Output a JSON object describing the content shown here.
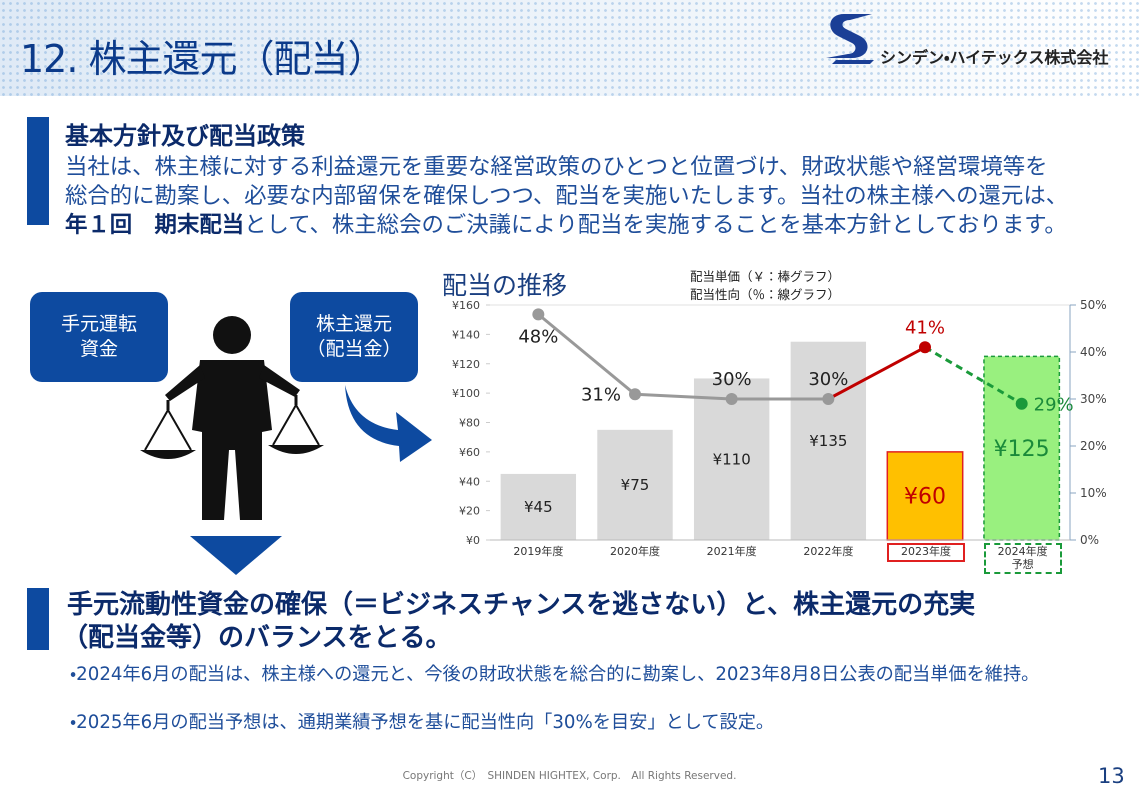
{
  "header": {
    "title": "12. 株主還元（配当）",
    "company": "シンデン・ハイテックス株式会社"
  },
  "policy": {
    "heading": "基本方針及び配当政策",
    "lines": [
      [
        "当社は、株主様に対する利益還元を重要な経営政策のひとつと位置づけ、財政状態や経営環境等を"
      ],
      [
        "総合的に勘案し、必要な内部留保を確保しつつ、配当を実施いたします。当社の株主様への還元は、"
      ],
      [
        "年１回　期末配当",
        "として、株主総会のご決議により配当を実施することを基本方針としております。"
      ]
    ]
  },
  "diagram": {
    "left_box": "手元運転\n資金",
    "right_box": "株主還元\n（配当金）"
  },
  "chart_data": {
    "type": "bar_line",
    "title": "配当の推移",
    "categories": [
      "2019年度",
      "2020年度",
      "2021年度",
      "2022年度",
      "2023年度",
      "2024年度\n予想"
    ],
    "series": [
      {
        "name": "配当単価（￥：棒グラフ）",
        "type": "bar",
        "values": [
          45,
          75,
          110,
          135,
          60,
          125
        ],
        "value_labels": [
          "¥45",
          "¥75",
          "¥110",
          "¥135",
          "¥60",
          "¥125"
        ],
        "colors": [
          "#d9d9d9",
          "#d9d9d9",
          "#d9d9d9",
          "#d9d9d9",
          "#ffc000",
          "#99f07f"
        ],
        "label_colors": [
          "#222222",
          "#222222",
          "#222222",
          "#222222",
          "#c00000",
          "#1a8a3a"
        ],
        "borders": [
          null,
          null,
          null,
          null,
          "solid",
          "dashed"
        ],
        "border_colors": [
          null,
          null,
          null,
          null,
          "#e02020",
          "#1a9a3a"
        ]
      },
      {
        "name": "配当性向（％：線グラフ）",
        "type": "line",
        "axis": "y2",
        "values": [
          48,
          31,
          30,
          30,
          41,
          29
        ],
        "value_labels": [
          "48%",
          "31%",
          "30%",
          "30%",
          "41%",
          "29%"
        ],
        "colors": [
          "#999999",
          "#999999",
          "#999999",
          "#999999",
          "#c00000",
          "#1a9a3a"
        ],
        "label_colors": [
          "#222222",
          "#222222",
          "#222222",
          "#222222",
          "#c00000",
          "#1a8a3a"
        ],
        "dash": [
          false,
          false,
          false,
          false,
          false,
          true
        ],
        "label_pos": [
          "below",
          "left",
          "above",
          "above",
          "above",
          "right"
        ]
      }
    ],
    "ylim": [
      0,
      160
    ],
    "yticks": [
      {
        "value": 0,
        "label": "¥0"
      },
      {
        "value": 20,
        "label": "¥20"
      },
      {
        "value": 40,
        "label": "¥40"
      },
      {
        "value": 60,
        "label": "¥60"
      },
      {
        "value": 80,
        "label": "¥80"
      },
      {
        "value": 100,
        "label": "¥100"
      },
      {
        "value": 120,
        "label": "¥120"
      },
      {
        "value": 140,
        "label": "¥140"
      },
      {
        "value": 160,
        "label": "¥160"
      }
    ],
    "y2lim": [
      0,
      50
    ],
    "y2ticks": [
      {
        "value": 0,
        "label": "0%"
      },
      {
        "value": 10,
        "label": "10%"
      },
      {
        "value": 20,
        "label": "20%"
      },
      {
        "value": 30,
        "label": "30%"
      },
      {
        "value": 40,
        "label": "40%"
      },
      {
        "value": 50,
        "label": "50%"
      }
    ],
    "grid": false
  },
  "conclusion": {
    "lines": [
      "手元流動性資金の確保（＝ビジネスチャンスを逃さない）と、株主還元の充実",
      "（配当金等）のバランスをとる。"
    ],
    "bullets": [
      "・2024年6月の配当は、株主様への還元と、今後の財政状態を総合的に勘案し、2023年8月8日公表の配当単価を維持。",
      "・2025年6月の配当予想は、通期業績予想を基に配当性向「30%を目安」として設定。"
    ]
  },
  "footer": {
    "copyright": "Copyright（C）　SHINDEN HIGHTEX, Corp.　All Rights Reserved.",
    "page": "13"
  }
}
